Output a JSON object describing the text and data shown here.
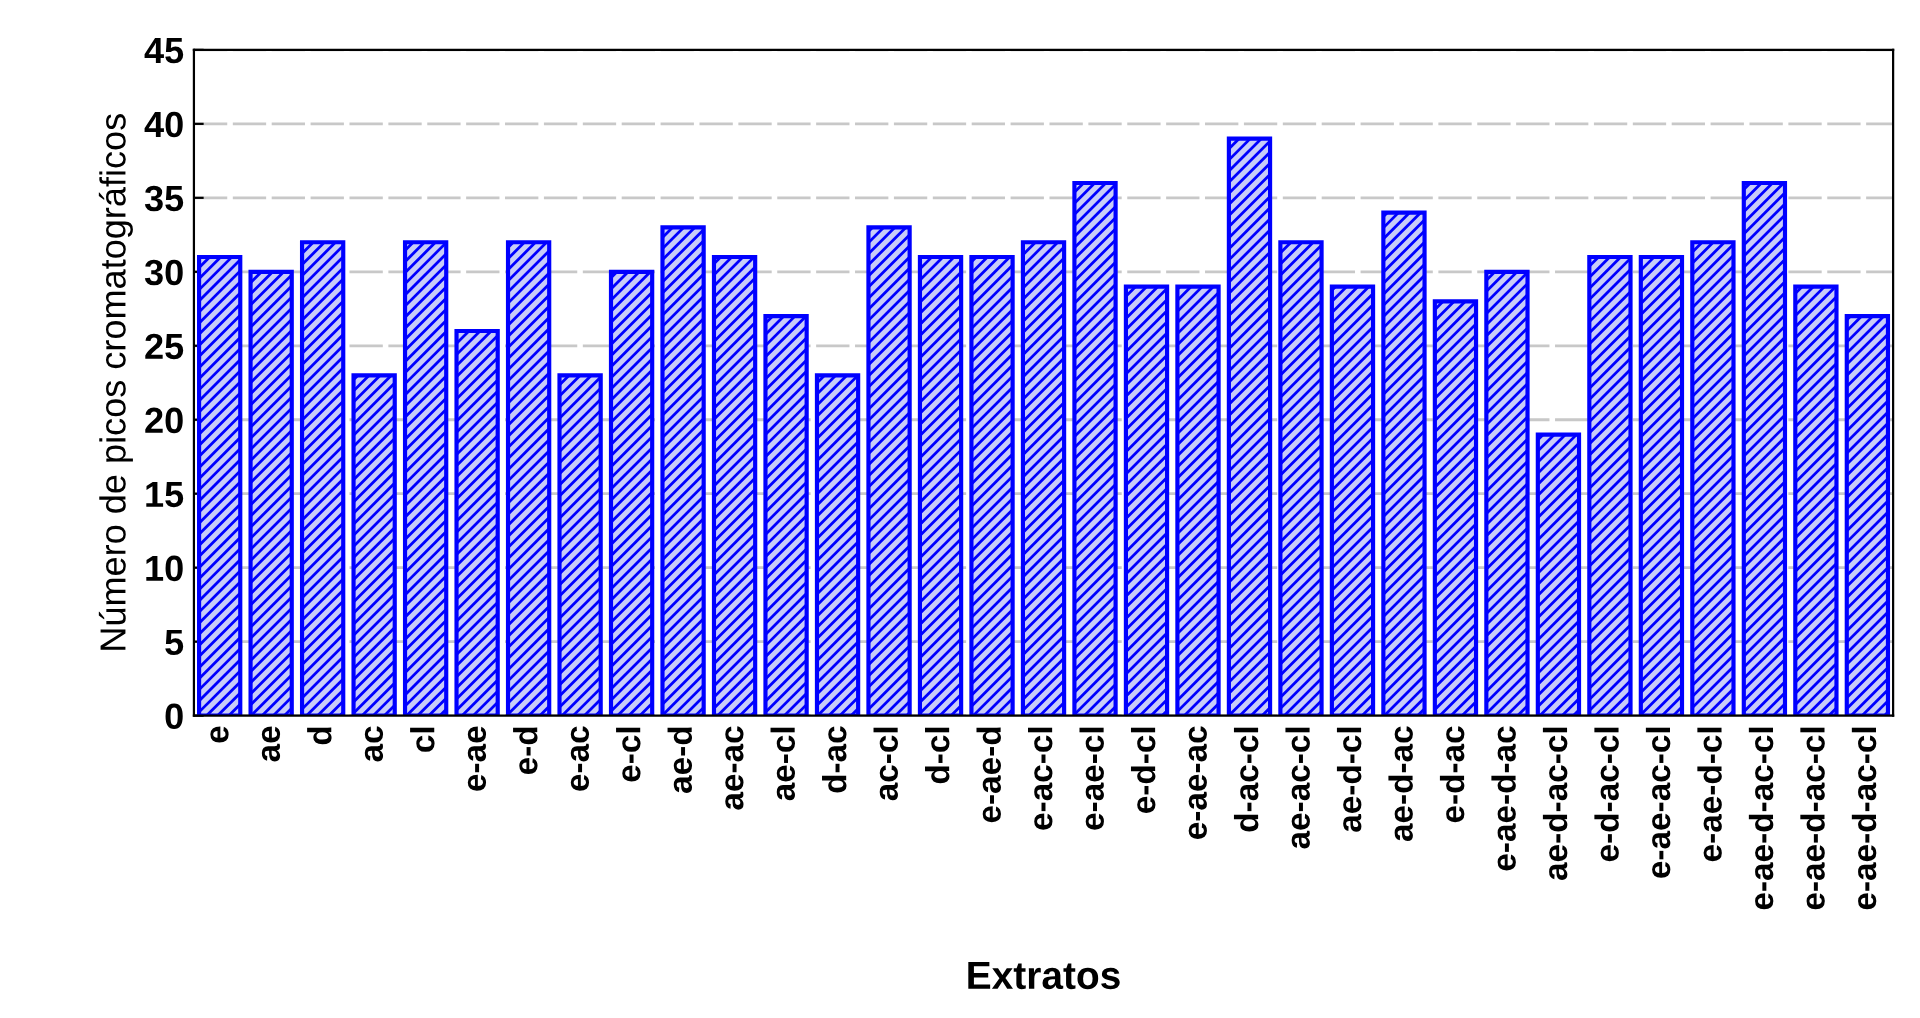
{
  "chart_data": {
    "type": "bar",
    "xlabel": "Extratos",
    "ylabel": "Número de picos cromatográficos",
    "categories": [
      "e",
      "ae",
      "d",
      "ac",
      "cl",
      "e-ae",
      "e-d",
      "e-ac",
      "e-cl",
      "ae-d",
      "ae-ac",
      "ae-cl",
      "d-ac",
      "ac-cl",
      "d-cl",
      "e-ae-d",
      "e-ac-cl",
      "e-ae-cl",
      "e-d-cl",
      "e-ae-ac",
      "d-ac-cl",
      "ae-ac-cl",
      "ae-d-cl",
      "ae-d-ac",
      "e-d-ac",
      "e-ae-d-ac",
      "ae-d-ac-cl",
      "e-d-ac-cl",
      "e-ae-ac-cl",
      "e-ae-d-cl",
      "e-ae-d-ac-cl",
      "e-ae-d-ac-cl",
      "e-ae-d-ac-cl"
    ],
    "values": [
      31,
      30,
      32,
      23,
      32,
      26,
      32,
      23,
      30,
      33,
      31,
      27,
      23,
      33,
      31,
      31,
      32,
      36,
      29,
      29,
      39,
      32,
      29,
      34,
      28,
      30,
      19,
      31,
      31,
      32,
      36,
      29,
      27
    ],
    "color": "#0000ff",
    "ylim": [
      0,
      45
    ],
    "yticks": [
      0,
      5,
      10,
      15,
      20,
      25,
      30,
      35,
      40,
      45
    ],
    "grid": "y"
  }
}
